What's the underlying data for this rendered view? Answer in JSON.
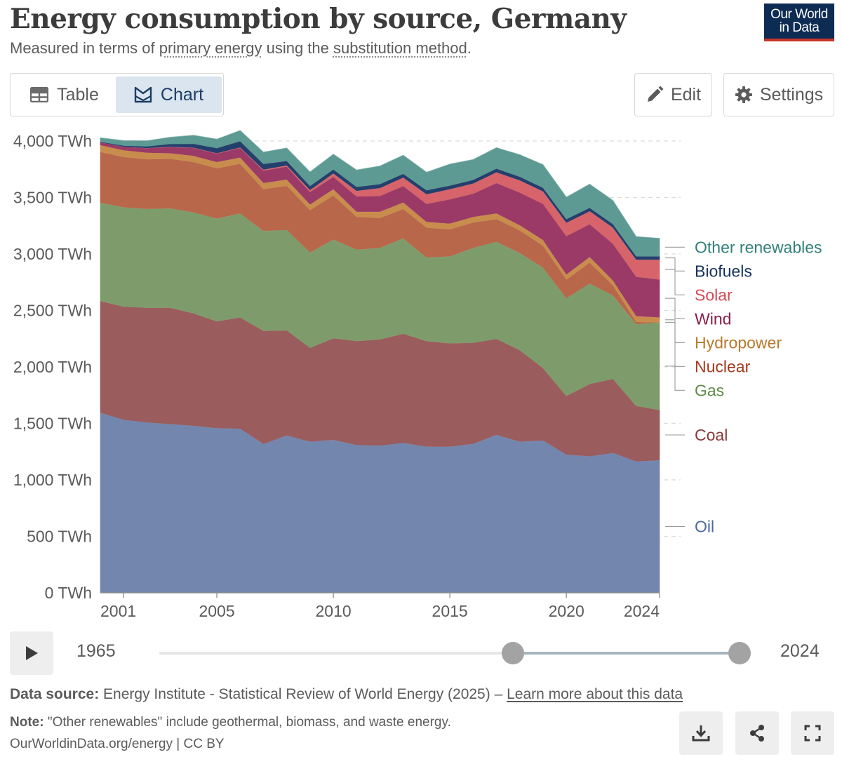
{
  "header": {
    "title": "Energy consumption by source, Germany",
    "subtitle_pre": "Measured in terms of ",
    "subtitle_link1": "primary energy",
    "subtitle_mid": " using the ",
    "subtitle_link2": "substitution method",
    "subtitle_post": ".",
    "logo_line1": "Our World",
    "logo_line2": "in Data"
  },
  "tabs": {
    "table_label": "Table",
    "chart_label": "Chart"
  },
  "toolbar": {
    "edit_label": "Edit",
    "settings_label": "Settings"
  },
  "timeline": {
    "start_label": "1965",
    "end_label": "2024",
    "range_start": 2000,
    "range_end": 2024
  },
  "footer": {
    "source_label": "Data source:",
    "source_text": " Energy Institute - Statistical Review of World Energy (2025) – ",
    "source_link": "Learn more about this data",
    "note_label": "Note:",
    "note_text": " \"Other renewables\" include geothermal, biomass, and waste energy.",
    "credit": "OurWorldinData.org/energy | CC BY"
  },
  "colors": {
    "Oil": "#7386ae",
    "Coal": "#9a5c5c",
    "Gas": "#7e9c6b",
    "Nuclear": "#b8674b",
    "Hydropower": "#c88d4c",
    "Wind": "#9b3a66",
    "Solar": "#d7646a",
    "Biofuels": "#243f6c",
    "Other renewables": "#5d9a93"
  },
  "label_colors": {
    "Oil": "#4a6a9e",
    "Coal": "#8a3a3a",
    "Gas": "#5f8a4a",
    "Nuclear": "#a43a1e",
    "Hydropower": "#b87a2c",
    "Wind": "#8a1f4a",
    "Solar": "#d24a55",
    "Biofuels": "#14305d",
    "Other renewables": "#2f7f7a"
  },
  "chart_data": {
    "type": "area",
    "stacked": true,
    "unit": "TWh",
    "x": [
      2000,
      2001,
      2002,
      2003,
      2004,
      2005,
      2006,
      2007,
      2008,
      2009,
      2010,
      2011,
      2012,
      2013,
      2014,
      2015,
      2016,
      2017,
      2018,
      2019,
      2020,
      2021,
      2022,
      2023,
      2024
    ],
    "ylim": [
      0,
      4000
    ],
    "yticks": [
      "0 TWh",
      "500 TWh",
      "1,000 TWh",
      "1,500 TWh",
      "2,000 TWh",
      "2,500 TWh",
      "3,000 TWh",
      "3,500 TWh",
      "4,000 TWh"
    ],
    "ytick_values": [
      0,
      500,
      1000,
      1500,
      2000,
      2500,
      3000,
      3500,
      4000
    ],
    "xticks": [
      "2001",
      "2005",
      "2010",
      "2015",
      "2020",
      "2024"
    ],
    "xtick_values": [
      2001,
      2005,
      2010,
      2015,
      2020,
      2024
    ],
    "grid": true,
    "legend_placement": "right",
    "series": [
      {
        "name": "Oil",
        "values": [
          1595,
          1535,
          1510,
          1495,
          1480,
          1460,
          1455,
          1320,
          1395,
          1340,
          1355,
          1310,
          1305,
          1330,
          1295,
          1295,
          1320,
          1400,
          1340,
          1350,
          1225,
          1210,
          1240,
          1165,
          1175
        ]
      },
      {
        "name": "Coal",
        "values": [
          990,
          1000,
          1015,
          1030,
          995,
          945,
          985,
          1000,
          930,
          830,
          900,
          920,
          940,
          965,
          935,
          915,
          895,
          850,
          810,
          640,
          520,
          640,
          655,
          490,
          445
        ]
      },
      {
        "name": "Gas",
        "values": [
          870,
          880,
          875,
          880,
          895,
          910,
          920,
          885,
          890,
          845,
          875,
          810,
          810,
          845,
          740,
          770,
          840,
          860,
          860,
          890,
          865,
          890,
          740,
          725,
          775
        ]
      },
      {
        "name": "Nuclear",
        "values": [
          450,
          445,
          440,
          440,
          445,
          445,
          440,
          370,
          390,
          375,
          390,
          290,
          265,
          260,
          265,
          240,
          225,
          200,
          200,
          195,
          165,
          185,
          90,
          20,
          0
        ]
      },
      {
        "name": "Hydropower",
        "values": [
          60,
          60,
          58,
          48,
          55,
          55,
          55,
          55,
          55,
          50,
          55,
          45,
          55,
          58,
          50,
          50,
          50,
          50,
          45,
          50,
          45,
          50,
          42,
          50,
          45
        ]
      },
      {
        "name": "Wind",
        "values": [
          25,
          30,
          40,
          55,
          70,
          75,
          85,
          110,
          115,
          110,
          110,
          135,
          140,
          145,
          160,
          215,
          205,
          270,
          290,
          320,
          340,
          290,
          325,
          350,
          335
        ]
      },
      {
        "name": "Solar",
        "values": [
          0,
          0,
          1,
          2,
          2,
          3,
          5,
          8,
          10,
          18,
          30,
          50,
          70,
          75,
          85,
          90,
          90,
          95,
          108,
          110,
          118,
          115,
          142,
          150,
          175
        ]
      },
      {
        "name": "Biofuels",
        "values": [
          5,
          10,
          15,
          25,
          35,
          45,
          55,
          50,
          40,
          35,
          35,
          35,
          35,
          33,
          35,
          32,
          32,
          32,
          32,
          32,
          32,
          30,
          32,
          30,
          30
        ]
      },
      {
        "name": "Other renewables",
        "values": [
          35,
          45,
          50,
          60,
          75,
          80,
          95,
          105,
          115,
          125,
          135,
          150,
          160,
          165,
          160,
          190,
          180,
          185,
          195,
          205,
          195,
          210,
          210,
          175,
          160
        ]
      }
    ]
  }
}
